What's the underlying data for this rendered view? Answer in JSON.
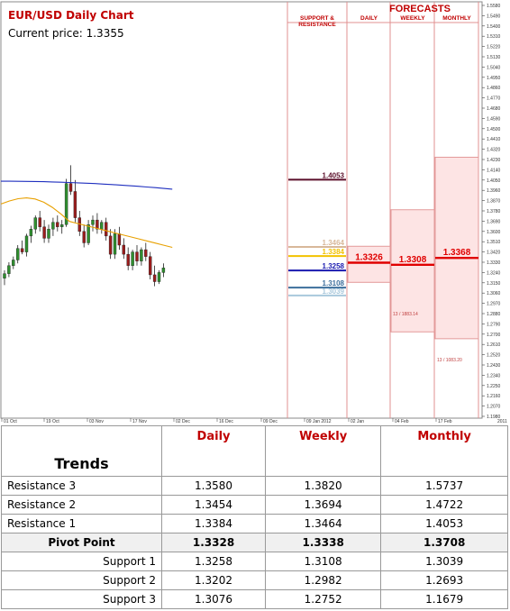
{
  "header": {
    "title": "EUR/USD  Daily Chart",
    "current_price": "Current price: 1.3355"
  },
  "forecast_panel": {
    "title": "FORECASTS",
    "col_support": "SUPPORT & RESISTANCE",
    "col_daily": "DAILY",
    "col_weekly": "WEEKLY",
    "col_monthly": "MONTHLY",
    "daily_forecast": "1.3326",
    "weekly_forecast": "1.3308",
    "monthly_forecast": "1.3368",
    "weekly_range_label": "13 / 1883.14",
    "monthly_range_label": "13 / 1083.20"
  },
  "chart_data": {
    "type": "candlestick",
    "y_axis_ticks": [
      "1.5580",
      "1.5490",
      "1.5400",
      "1.5310",
      "1.5220",
      "1.5130",
      "1.5040",
      "1.4950",
      "1.4860",
      "1.4770",
      "1.4680",
      "1.4590",
      "1.4500",
      "1.4410",
      "1.4320",
      "1.4230",
      "1.4140",
      "1.4050",
      "1.3960",
      "1.3870",
      "1.3780",
      "1.3690",
      "1.3600",
      "1.3510",
      "1.3420",
      "1.3330",
      "1.3240",
      "1.3150",
      "1.3060",
      "1.2970",
      "1.2880",
      "1.2790",
      "1.2700",
      "1.2610",
      "1.2520",
      "1.2430",
      "1.2340",
      "1.2250",
      "1.2160",
      "1.2070",
      "1.1980"
    ],
    "y_axis_extra": "2011",
    "x_axis_ticks": [
      "01 Oct",
      "19 Oct",
      "03 Nov",
      "17 Nov",
      "02 Dec",
      "16 Dec",
      "09 Dec",
      "09 Jan 2012",
      "02 Jan",
      "04 Feb",
      "17 Feb"
    ],
    "ylim": [
      1.198,
      1.558
    ],
    "candles": [
      {
        "o": 1.319,
        "h": 1.326,
        "l": 1.313,
        "c": 1.323
      },
      {
        "o": 1.323,
        "h": 1.333,
        "l": 1.32,
        "c": 1.33
      },
      {
        "o": 1.33,
        "h": 1.338,
        "l": 1.327,
        "c": 1.335
      },
      {
        "o": 1.335,
        "h": 1.348,
        "l": 1.332,
        "c": 1.345
      },
      {
        "o": 1.345,
        "h": 1.352,
        "l": 1.34,
        "c": 1.342
      },
      {
        "o": 1.342,
        "h": 1.358,
        "l": 1.338,
        "c": 1.356
      },
      {
        "o": 1.356,
        "h": 1.365,
        "l": 1.35,
        "c": 1.362
      },
      {
        "o": 1.362,
        "h": 1.374,
        "l": 1.358,
        "c": 1.372
      },
      {
        "o": 1.372,
        "h": 1.378,
        "l": 1.36,
        "c": 1.364
      },
      {
        "o": 1.364,
        "h": 1.37,
        "l": 1.35,
        "c": 1.354
      },
      {
        "o": 1.354,
        "h": 1.366,
        "l": 1.35,
        "c": 1.362
      },
      {
        "o": 1.362,
        "h": 1.372,
        "l": 1.356,
        "c": 1.368
      },
      {
        "o": 1.368,
        "h": 1.374,
        "l": 1.36,
        "c": 1.364
      },
      {
        "o": 1.364,
        "h": 1.37,
        "l": 1.358,
        "c": 1.366
      },
      {
        "o": 1.366,
        "h": 1.406,
        "l": 1.364,
        "c": 1.402
      },
      {
        "o": 1.402,
        "h": 1.418,
        "l": 1.392,
        "c": 1.395
      },
      {
        "o": 1.395,
        "h": 1.405,
        "l": 1.368,
        "c": 1.372
      },
      {
        "o": 1.372,
        "h": 1.378,
        "l": 1.356,
        "c": 1.36
      },
      {
        "o": 1.36,
        "h": 1.366,
        "l": 1.346,
        "c": 1.35
      },
      {
        "o": 1.35,
        "h": 1.37,
        "l": 1.348,
        "c": 1.366
      },
      {
        "o": 1.366,
        "h": 1.374,
        "l": 1.36,
        "c": 1.37
      },
      {
        "o": 1.37,
        "h": 1.376,
        "l": 1.358,
        "c": 1.362
      },
      {
        "o": 1.362,
        "h": 1.37,
        "l": 1.358,
        "c": 1.368
      },
      {
        "o": 1.368,
        "h": 1.372,
        "l": 1.352,
        "c": 1.356
      },
      {
        "o": 1.356,
        "h": 1.362,
        "l": 1.336,
        "c": 1.34
      },
      {
        "o": 1.34,
        "h": 1.362,
        "l": 1.336,
        "c": 1.358
      },
      {
        "o": 1.358,
        "h": 1.364,
        "l": 1.344,
        "c": 1.348
      },
      {
        "o": 1.348,
        "h": 1.354,
        "l": 1.336,
        "c": 1.34
      },
      {
        "o": 1.34,
        "h": 1.346,
        "l": 1.326,
        "c": 1.33
      },
      {
        "o": 1.33,
        "h": 1.344,
        "l": 1.326,
        "c": 1.342
      },
      {
        "o": 1.342,
        "h": 1.348,
        "l": 1.33,
        "c": 1.334
      },
      {
        "o": 1.334,
        "h": 1.346,
        "l": 1.33,
        "c": 1.344
      },
      {
        "o": 1.344,
        "h": 1.35,
        "l": 1.334,
        "c": 1.338
      },
      {
        "o": 1.338,
        "h": 1.342,
        "l": 1.318,
        "c": 1.322
      },
      {
        "o": 1.322,
        "h": 1.33,
        "l": 1.312,
        "c": 1.316
      },
      {
        "o": 1.316,
        "h": 1.326,
        "l": 1.314,
        "c": 1.324
      },
      {
        "o": 1.324,
        "h": 1.332,
        "l": 1.32,
        "c": 1.328
      }
    ],
    "moving_averages": [
      {
        "color": "#1f2fbf",
        "start": 1.404,
        "end": 1.397
      },
      {
        "color": "#e8a000",
        "start": 1.384,
        "end": 1.346
      }
    ],
    "levels": [
      {
        "label": "1.4053",
        "value": 1.4053,
        "color": "#5b0f2a"
      },
      {
        "label": "1.3464",
        "value": 1.3464,
        "color": "#d8b89a"
      },
      {
        "label": "1.3384",
        "value": 1.3384,
        "color": "#f2c200"
      },
      {
        "label": "1.3258",
        "value": 1.3258,
        "color": "#1a1ab0"
      },
      {
        "label": "1.3108",
        "value": 1.3108,
        "color": "#3c6f9c"
      },
      {
        "label": "1.3039",
        "value": 1.3039,
        "color": "#a8c8dc"
      }
    ],
    "forecast_ranges": [
      {
        "lo": 1.3154,
        "hi": 1.347,
        "mid": 1.3326
      },
      {
        "lo": 1.272,
        "hi": 1.379,
        "mid": 1.3308
      },
      {
        "lo": 1.266,
        "hi": 1.425,
        "mid": 1.3368
      }
    ]
  },
  "trends_table": {
    "title": "Trends",
    "columns": [
      "Daily",
      "Weekly",
      "Monthly"
    ],
    "rows": [
      {
        "label": "Resistance 3",
        "values": [
          "1.3580",
          "1.3820",
          "1.5737"
        ]
      },
      {
        "label": "Resistance 2",
        "values": [
          "1.3454",
          "1.3694",
          "1.4722"
        ]
      },
      {
        "label": "Resistance 1",
        "values": [
          "1.3384",
          "1.3464",
          "1.4053"
        ]
      },
      {
        "label": "Pivot Point",
        "values": [
          "1.3328",
          "1.3338",
          "1.3708"
        ]
      },
      {
        "label": "Support 1",
        "values": [
          "1.3258",
          "1.3108",
          "1.3039"
        ]
      },
      {
        "label": "Support 2",
        "values": [
          "1.3202",
          "1.2982",
          "1.2693"
        ]
      },
      {
        "label": "Support 3",
        "values": [
          "1.3076",
          "1.2752",
          "1.1679"
        ]
      }
    ]
  }
}
